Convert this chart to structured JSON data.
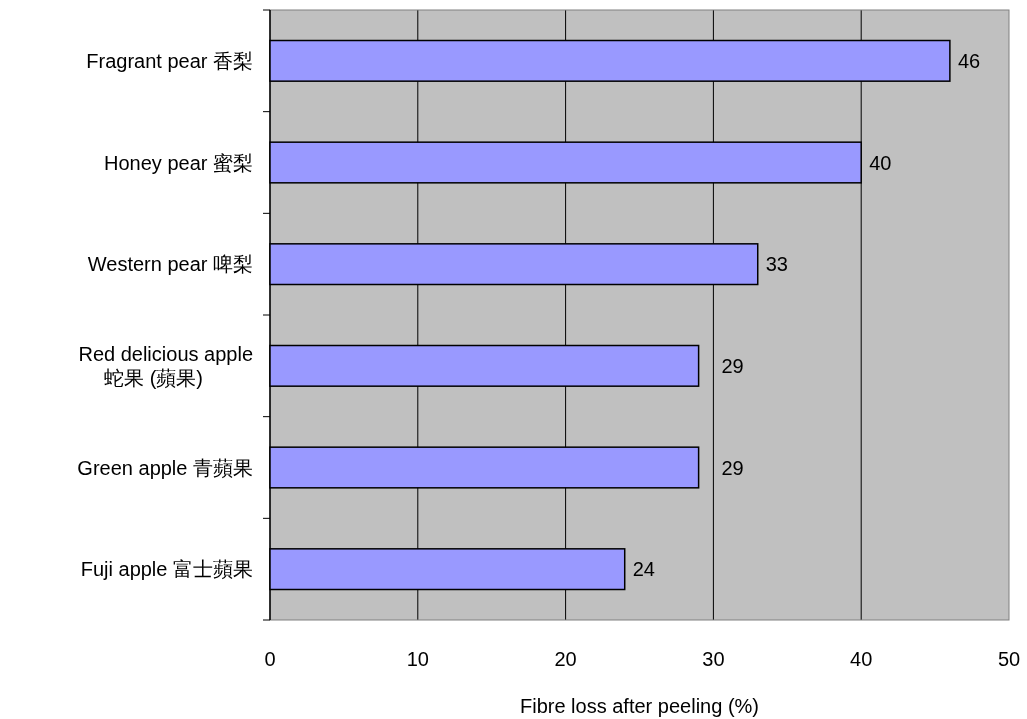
{
  "chart_data": {
    "type": "bar",
    "orientation": "horizontal",
    "categories": [
      "Fragrant pear 香梨",
      "Honey pear 蜜梨",
      "Western pear 啤梨",
      "Red delicious apple\n蛇果 (蘋果)",
      "Green apple 青蘋果",
      "Fuji apple 富士蘋果"
    ],
    "values": [
      46,
      40,
      33,
      29,
      29,
      24
    ],
    "color": "#9999ff",
    "xlim": [
      0,
      50
    ],
    "xticks": [
      0,
      10,
      20,
      30,
      40,
      50
    ],
    "xlabel": "Fibre loss after peeling (%)",
    "grid": "x",
    "data_labels": true
  }
}
